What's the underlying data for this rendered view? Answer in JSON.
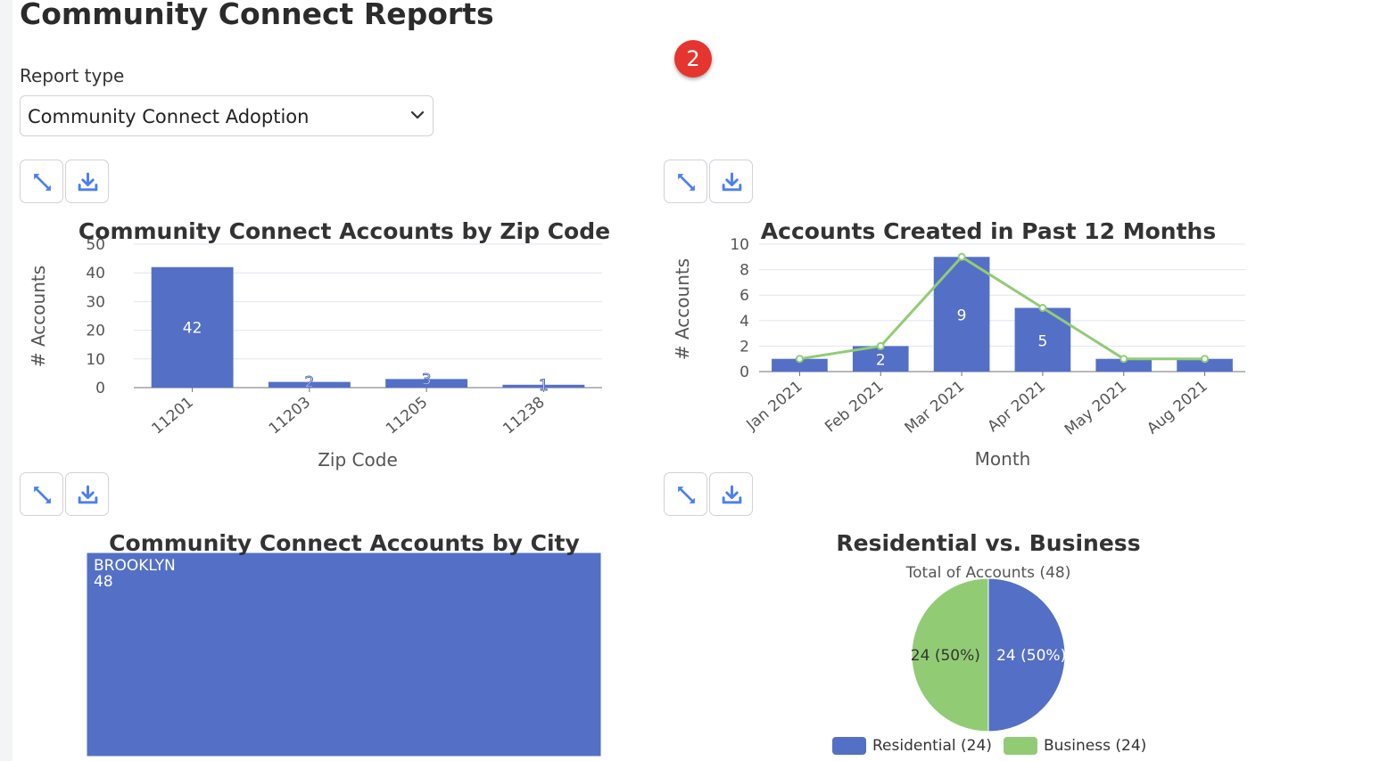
{
  "page": {
    "title": "Community Connect Reports",
    "notification_count": "2"
  },
  "report_type": {
    "label": "Report type",
    "selected": "Community Connect Adoption"
  },
  "colors": {
    "blue": "#5470c6",
    "green": "#91cc75",
    "axis": "#6e7079",
    "grid": "#e0e6f1"
  },
  "toolbar_icons": {
    "expand": "expand-icon",
    "download": "download-icon"
  },
  "charts": {
    "zip": {
      "chart_data": {
        "type": "bar",
        "title": "Community Connect Accounts by Zip Code",
        "xlabel": "Zip Code",
        "ylabel": "# Accounts",
        "categories": [
          "11201",
          "11203",
          "11205",
          "11238"
        ],
        "values": [
          42,
          2,
          3,
          1
        ],
        "ylim": [
          0,
          50
        ],
        "yticks": [
          "0",
          "10",
          "20",
          "30",
          "40",
          "50"
        ],
        "grid": true
      }
    },
    "months": {
      "chart_data": {
        "type": "bar",
        "title": "Accounts Created in Past 12 Months",
        "xlabel": "Month",
        "ylabel": "# Accounts",
        "categories": [
          "Jan 2021",
          "Feb 2021",
          "Mar 2021",
          "Apr 2021",
          "May 2021",
          "Aug 2021"
        ],
        "series": [
          {
            "type": "bar",
            "values": [
              1,
              2,
              9,
              5,
              1,
              1
            ],
            "shown_labels": [
              "",
              "2",
              "9",
              "5",
              "",
              ""
            ]
          },
          {
            "type": "line",
            "values": [
              1,
              2,
              9,
              5,
              1,
              1
            ]
          }
        ],
        "ylim": [
          0,
          10
        ],
        "yticks": [
          "0",
          "2",
          "4",
          "6",
          "8",
          "10"
        ],
        "grid": true
      }
    },
    "city": {
      "chart_data": {
        "type": "treemap",
        "title": "Community Connect Accounts by City",
        "items": [
          {
            "name": "BROOKLYN",
            "value": 48
          }
        ]
      }
    },
    "pie": {
      "chart_data": {
        "type": "pie",
        "title": "Residential vs. Business",
        "subtitle": "Total of Accounts (48)",
        "slices": [
          {
            "name": "Residential",
            "value": 24,
            "label": "24 (50%)",
            "legend": "Residential (24)"
          },
          {
            "name": "Business",
            "value": 24,
            "label": "24 (50%)",
            "legend": "Business (24)"
          }
        ],
        "legend_position": "bottom"
      }
    }
  }
}
